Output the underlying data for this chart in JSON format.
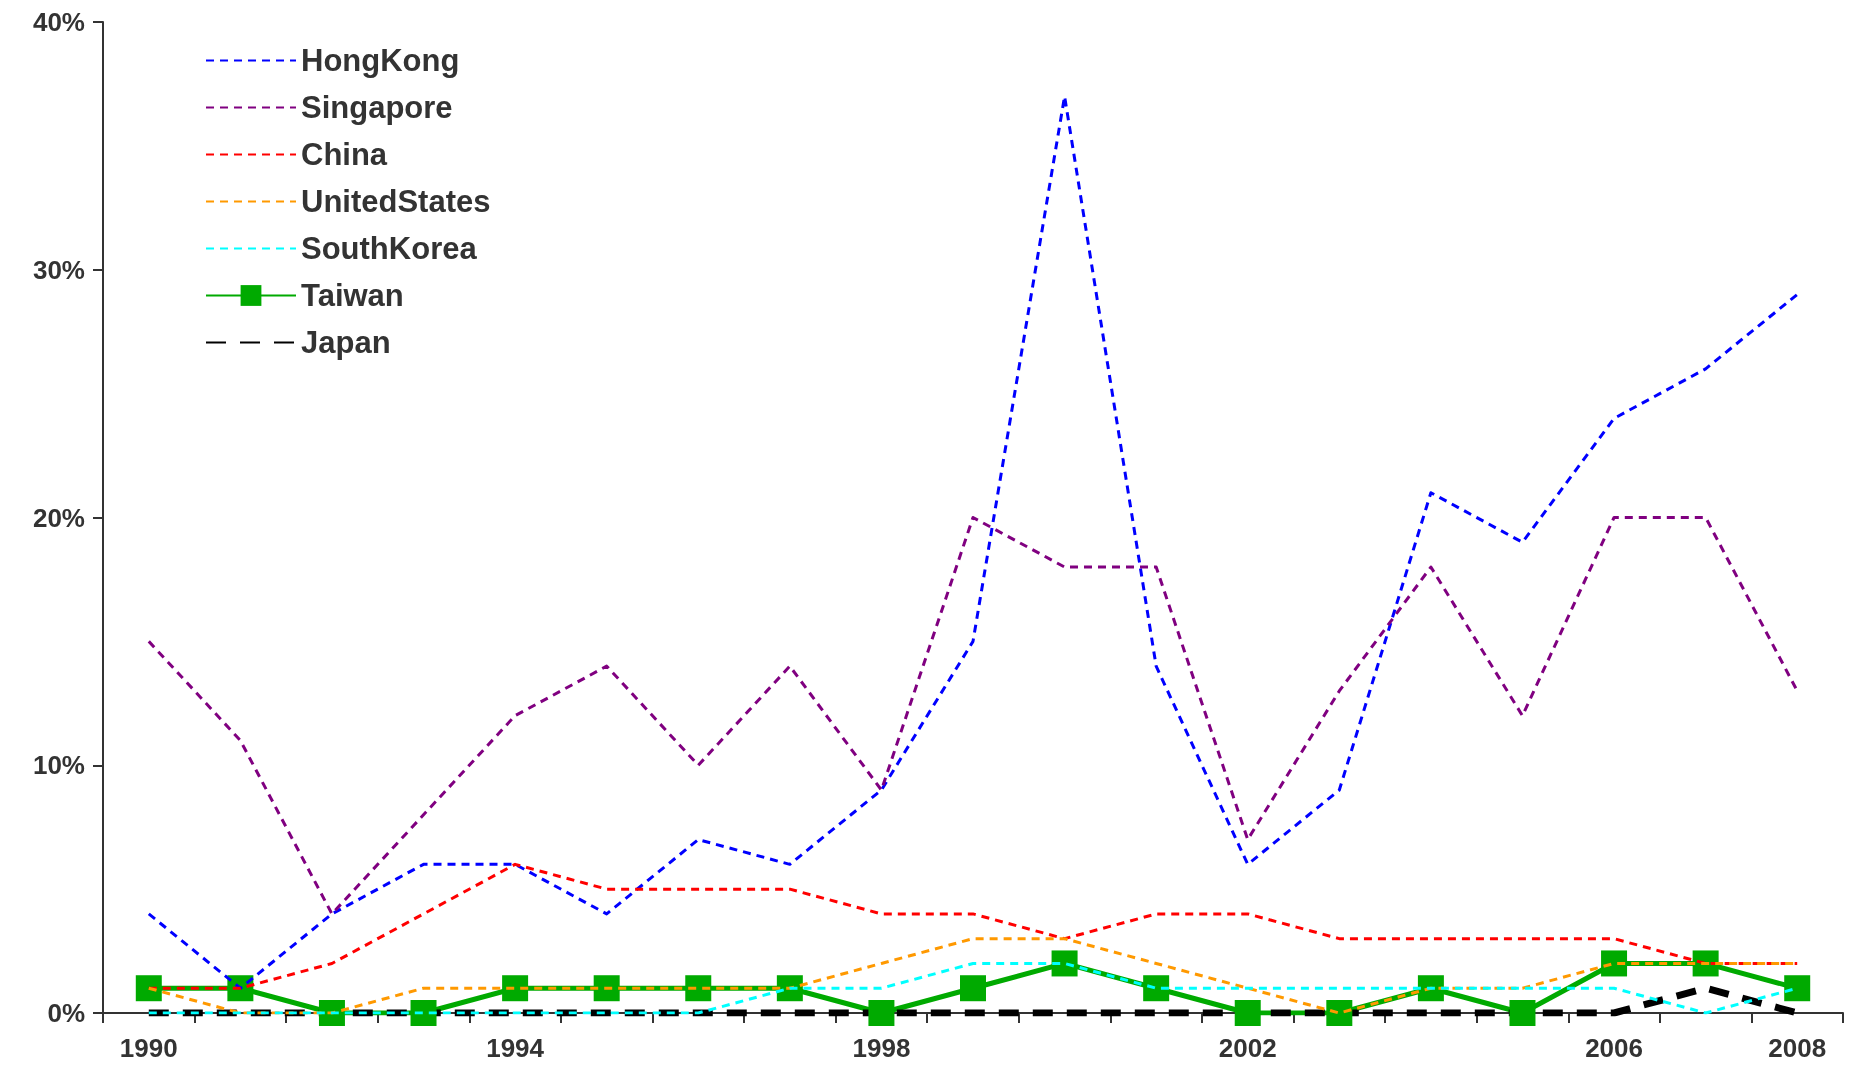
{
  "chart_data": {
    "type": "line",
    "categories": [
      "1990",
      null,
      null,
      null,
      "1994",
      null,
      null,
      null,
      "1998",
      null,
      null,
      null,
      "2002",
      null,
      null,
      null,
      "2006",
      null,
      "2008"
    ],
    "ylim": [
      0,
      40
    ],
    "yticks": [
      {
        "value": 0,
        "label": "0%"
      },
      {
        "value": 10,
        "label": "10%"
      },
      {
        "value": 20,
        "label": "20%"
      },
      {
        "value": 30,
        "label": "30%"
      },
      {
        "value": 40,
        "label": "40%"
      }
    ],
    "grid": false,
    "legend": "top left",
    "marker": "none",
    "line_style": "dashed",
    "series": [
      {
        "name": "HongKong",
        "color": "#0000ff",
        "values": [
          4,
          1,
          4,
          6,
          6,
          4,
          7,
          6,
          9,
          15,
          37,
          14,
          6,
          9,
          21,
          19,
          24,
          26,
          29
        ]
      },
      {
        "name": "Singapore",
        "color": "#800080",
        "values": [
          15,
          11,
          4,
          8,
          12,
          14,
          10,
          14,
          9,
          20,
          18,
          18,
          7,
          13,
          18,
          12,
          20,
          20,
          13
        ]
      },
      {
        "name": "China",
        "color": "#ff0000",
        "values": [
          1,
          1,
          2,
          4,
          6,
          5,
          5,
          5,
          4,
          4,
          3,
          4,
          4,
          3,
          3,
          3,
          3,
          2,
          2
        ]
      },
      {
        "name": "UnitedStates",
        "color": "#ff9900",
        "values": [
          1,
          0,
          0,
          1,
          1,
          1,
          1,
          1,
          2,
          3,
          3,
          2,
          1,
          0,
          1,
          1,
          2,
          2,
          2
        ]
      },
      {
        "name": "SouthKorea",
        "color": "#00ffff",
        "values": [
          0,
          0,
          0,
          0,
          0,
          0,
          0,
          1,
          1,
          2,
          2,
          1,
          1,
          1,
          1,
          1,
          1,
          0,
          1
        ]
      },
      {
        "name": "Taiwan",
        "color": "#00aa00",
        "marker": "square",
        "line_style": "solid",
        "values": [
          1,
          1,
          0,
          0,
          1,
          1,
          1,
          1,
          0,
          1,
          2,
          1,
          0,
          0,
          1,
          0,
          2,
          2,
          1
        ]
      },
      {
        "name": "Japan",
        "color": "#000000",
        "values": [
          0,
          0,
          0,
          0,
          0,
          0,
          0,
          0,
          0,
          0,
          0,
          0,
          0,
          0,
          0,
          0,
          0,
          1,
          0
        ]
      }
    ]
  }
}
